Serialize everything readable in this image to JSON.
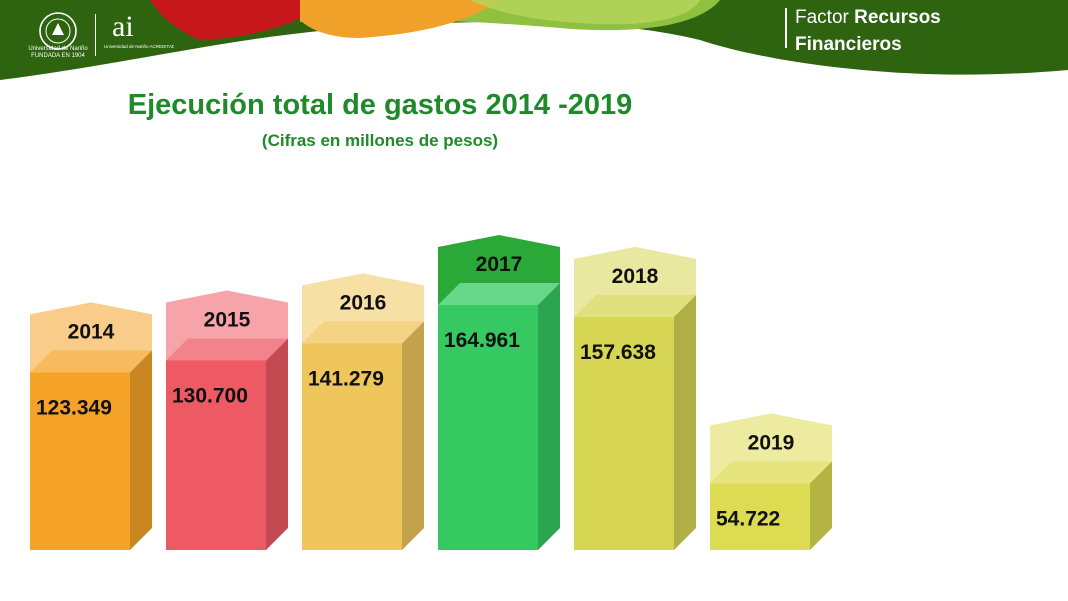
{
  "header": {
    "factor_prefix": "Factor",
    "factor_bold": "Recursos",
    "factor_line2": "Financieros",
    "university_name": "Universidad de Nariño",
    "university_founded": "FUNDADA EN 1904",
    "ai_logo_text": "ai",
    "ai_caption": "Universidad de Nariño ACREDITADA EN ALTA CALIDAD"
  },
  "colors": {
    "banner_green": "#2e6410",
    "banner_light": "#8fc040",
    "banner_red": "#c8161d",
    "banner_orange": "#f0a12a",
    "title_green": "#1f8a2a"
  },
  "chart_data": {
    "type": "bar",
    "title": "Ejecución total de gastos 2014 -2019",
    "subtitle": "(Cifras en millones de pesos)",
    "categories": [
      "2014",
      "2015",
      "2016",
      "2017",
      "2018",
      "2019"
    ],
    "values": [
      123349,
      130700,
      141279,
      164961,
      157638,
      54722
    ],
    "value_labels": [
      "123.349",
      "130.700",
      "141.279",
      "164.961",
      "157.638",
      "54.722"
    ],
    "colors": [
      "#f5a328",
      "#ee5a63",
      "#efc65c",
      "#36c962",
      "#d7d654",
      "#dcdb52"
    ],
    "style": "3d-columns-with-year-tags",
    "grid": false,
    "legend": "none"
  }
}
